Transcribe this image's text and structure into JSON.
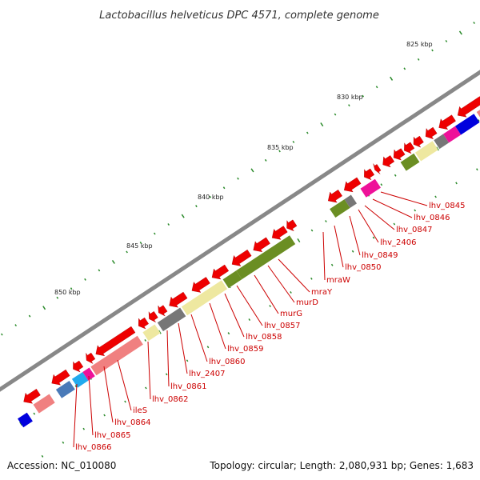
{
  "title": "Lactobacillus helveticus DPC 4571, complete genome",
  "footer": {
    "accession": "Accession: NC_010080",
    "summary": "Topology: circular; Length: 2,080,931 bp; Genes: 1,683"
  },
  "kbp_labels": [
    "825 kbp",
    "830 kbp",
    "835 kbp",
    "840 kbp",
    "845 kbp",
    "850 kbp"
  ],
  "gene_labels": [
    "lhv_0845",
    "lhv_0846",
    "lhv_0847",
    "lhv_2406",
    "lhv_0849",
    "lhv_0850",
    "mraW",
    "mraY",
    "murD",
    "murG",
    "lhv_0857",
    "lhv_0858",
    "lhv_0859",
    "lhv_0860",
    "lhv_2407",
    "lhv_0861",
    "lhv_0862",
    "ileS",
    "lhv_0864",
    "lhv_0865",
    "lhv_0866"
  ],
  "colors": {
    "backbone": "#888888",
    "cds_arrow": "#ee0000",
    "rna_light": "#f08080",
    "khaki": "#eee8a0",
    "olive": "#6b8e23",
    "gray": "#777777",
    "magenta": "#ee1199",
    "blue": "#0000dd",
    "steelblue": "#4a7ab8",
    "cyan": "#22aaee",
    "tick": "#2a8a2a",
    "label": "#cc0000"
  }
}
